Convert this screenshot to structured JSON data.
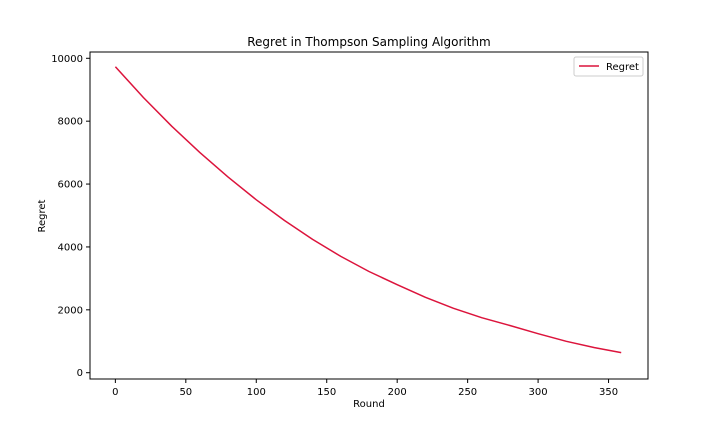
{
  "chart_data": {
    "type": "line",
    "title": "Regret in Thompson Sampling Algorithm",
    "xlabel": "Round",
    "ylabel": "Regret",
    "xlim": [
      -18,
      378
    ],
    "ylim": [
      -200,
      10200
    ],
    "xticks": [
      0,
      50,
      100,
      150,
      200,
      250,
      300,
      350
    ],
    "yticks": [
      0,
      2000,
      4000,
      6000,
      8000,
      10000
    ],
    "grid": false,
    "legend_position": "top-right",
    "series": [
      {
        "name": "Regret",
        "color": "#dc143c",
        "x": [
          0,
          20,
          40,
          60,
          80,
          100,
          120,
          140,
          160,
          180,
          200,
          220,
          240,
          260,
          280,
          300,
          320,
          340,
          359
        ],
        "y": [
          9730,
          8750,
          7840,
          7000,
          6220,
          5500,
          4840,
          4240,
          3700,
          3220,
          2800,
          2400,
          2050,
          1750,
          1500,
          1240,
          1000,
          800,
          640
        ]
      }
    ]
  }
}
